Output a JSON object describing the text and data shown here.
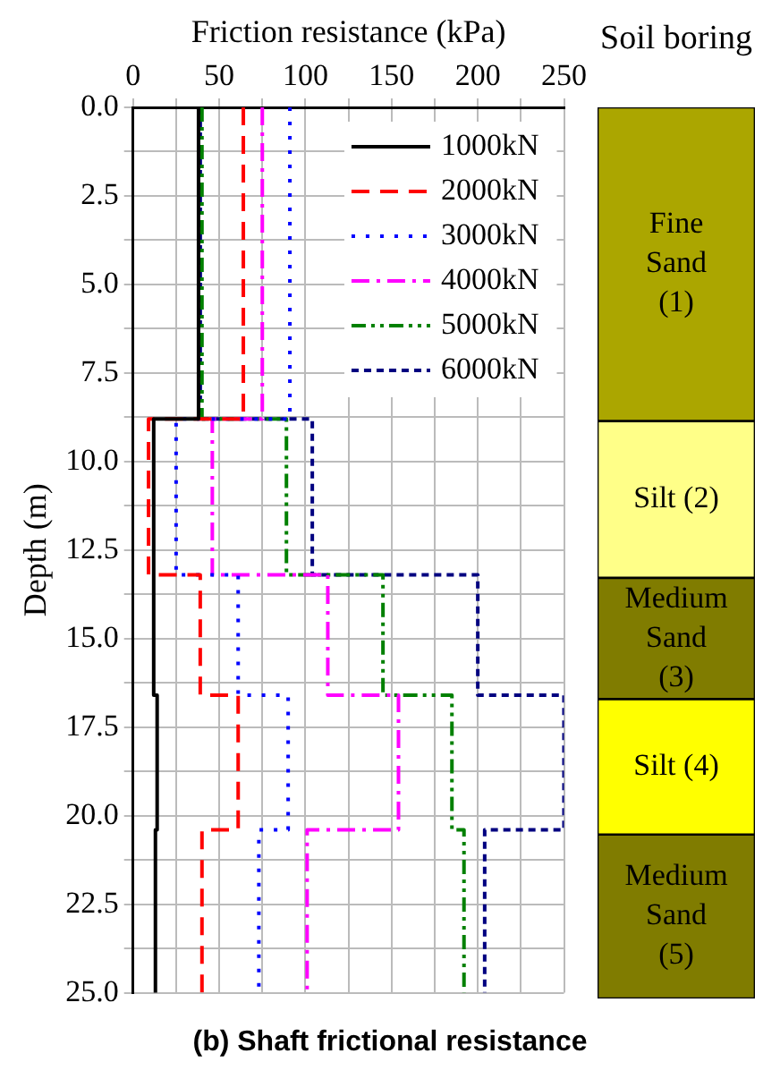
{
  "chart_data": [
    {
      "type": "line",
      "xlabel": "Friction resistance (kPa)",
      "ylabel": "Depth (m)",
      "xlim": [
        0,
        250
      ],
      "xticks": [
        0,
        {
          "value": 25,
          "label": null
        },
        50,
        {
          "value": 75,
          "label": null
        },
        100,
        {
          "value": 125,
          "label": null
        },
        150,
        {
          "value": 175,
          "label": null
        },
        200,
        {
          "value": 225,
          "label": null
        },
        250
      ],
      "ylim": [
        25,
        0
      ],
      "yticks": [
        {
          "value": 0,
          "label": "0.0"
        },
        {
          "value": 1.25,
          "label": null
        },
        {
          "value": 2.5,
          "label": "2.5"
        },
        {
          "value": 3.75,
          "label": null
        },
        {
          "value": 5,
          "label": "5.0"
        },
        {
          "value": 6.25,
          "label": null
        },
        {
          "value": 7.5,
          "label": "7.5"
        },
        {
          "value": 8.75,
          "label": null
        },
        {
          "value": 10,
          "label": "10.0"
        },
        {
          "value": 11.25,
          "label": null
        },
        {
          "value": 12.5,
          "label": "12.5"
        },
        {
          "value": 13.75,
          "label": null
        },
        {
          "value": 15,
          "label": "15.0"
        },
        {
          "value": 16.25,
          "label": null
        },
        {
          "value": 17.5,
          "label": "17.5"
        },
        {
          "value": 18.75,
          "label": null
        },
        {
          "value": 20,
          "label": "20.0"
        },
        {
          "value": 21.25,
          "label": null
        },
        {
          "value": 22.5,
          "label": "22.5"
        },
        {
          "value": 23.75,
          "label": null
        },
        {
          "value": 25,
          "label": "25.0"
        }
      ],
      "grid": true,
      "legend": "top right",
      "marker": "none",
      "series": [
        {
          "name": "1000kN",
          "color": "#000000",
          "line_style": "solid",
          "x": [
            38,
            38,
            12,
            12,
            12,
            12,
            14,
            14,
            13,
            13
          ],
          "values": [
            0,
            8.8,
            8.8,
            13.2,
            13.2,
            16.6,
            16.6,
            20.4,
            20.4,
            25
          ]
        },
        {
          "name": "2000kN",
          "color": "#ff0000",
          "line_style": "dashed",
          "x": [
            64,
            64,
            9,
            9,
            39,
            39,
            61,
            61,
            40,
            40
          ],
          "values": [
            0,
            8.8,
            8.8,
            13.2,
            13.2,
            16.6,
            16.6,
            20.4,
            20.4,
            25
          ]
        },
        {
          "name": "3000kN",
          "color": "#0000ff",
          "line_style": "dotted",
          "x": [
            91,
            91,
            25,
            25,
            61,
            61,
            90,
            90,
            73,
            73
          ],
          "values": [
            0,
            8.8,
            8.8,
            13.2,
            13.2,
            16.6,
            16.6,
            20.4,
            20.4,
            25
          ]
        },
        {
          "name": "4000kN",
          "color": "#ff00ff",
          "line_style": "dashdot",
          "x": [
            75,
            75,
            46,
            46,
            113,
            113,
            154,
            154,
            101,
            101
          ],
          "values": [
            0,
            8.8,
            8.8,
            13.2,
            13.2,
            16.6,
            16.6,
            20.4,
            20.4,
            25
          ]
        },
        {
          "name": "5000kN",
          "color": "#008000",
          "line_style": "dashdotdot",
          "x": [
            40,
            40,
            89,
            89,
            145,
            145,
            185,
            185,
            192,
            192
          ],
          "values": [
            0,
            8.8,
            8.8,
            13.2,
            13.2,
            16.6,
            16.6,
            20.4,
            20.4,
            25
          ]
        },
        {
          "name": "6000kN",
          "color": "#000080",
          "line_style": "shortdash",
          "x": [
            39,
            39,
            104,
            104,
            200,
            200,
            250,
            250,
            204,
            204
          ],
          "values": [
            0,
            8.8,
            8.8,
            13.2,
            13.2,
            16.6,
            16.6,
            20.4,
            20.4,
            25
          ]
        }
      ],
      "annotations": [
        "(b) Shaft frictional resistance"
      ]
    },
    {
      "type": "bar",
      "stacked": true,
      "title": "Soil boring",
      "categories": [
        null
      ],
      "ylim": [
        25,
        0
      ],
      "tick_labels": false,
      "series": [
        {
          "name": "Fine Sand (1)",
          "color": "#aba600",
          "values": [
            8.8
          ]
        },
        {
          "name": "Silt (2)",
          "color": "#ffff88",
          "values": [
            4.4
          ]
        },
        {
          "name": "Medium Sand (3)",
          "color": "#807c00",
          "values": [
            3.4
          ]
        },
        {
          "name": "Silt (4)",
          "color": "#ffff00",
          "values": [
            3.8
          ]
        },
        {
          "name": "Medium Sand (5)",
          "color": "#807c00",
          "values": [
            4.6
          ]
        }
      ]
    }
  ]
}
